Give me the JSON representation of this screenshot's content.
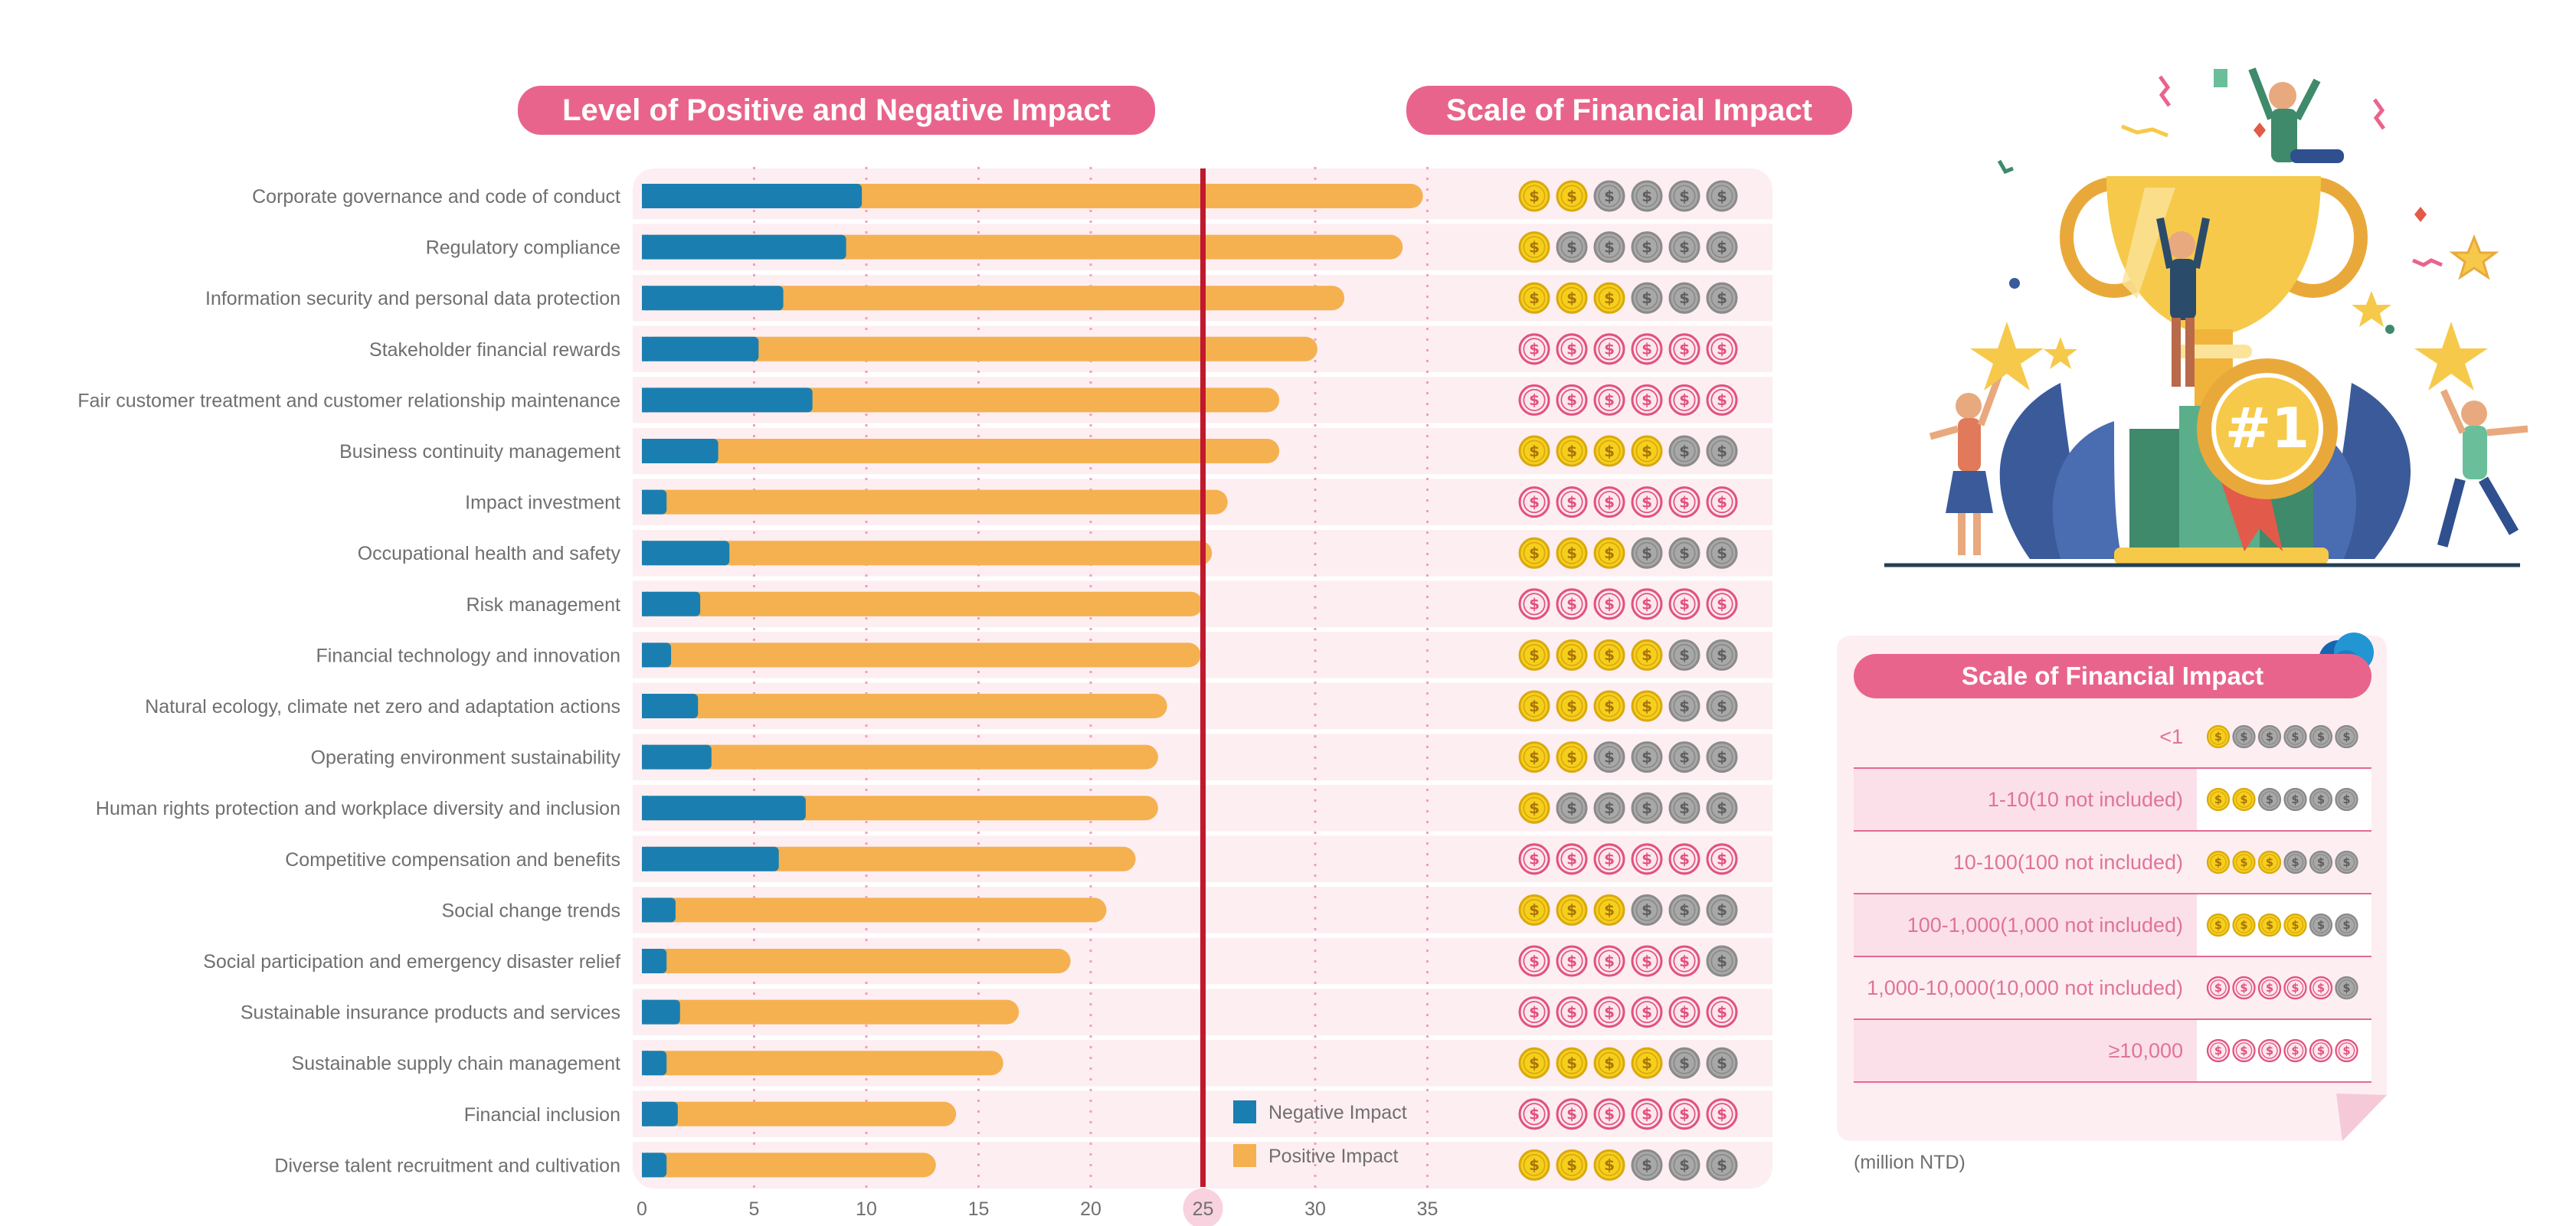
{
  "titles": {
    "impact": "Level of Positive and Negative Impact",
    "financial": "Scale of Financial Impact"
  },
  "chart_data": {
    "type": "bar",
    "orientation": "horizontal",
    "stacked": true,
    "title": "Level of Positive and Negative Impact",
    "xlim": [
      0,
      35
    ],
    "xticks": [
      0,
      5,
      10,
      15,
      20,
      25,
      30,
      35
    ],
    "threshold": 25,
    "grid": "vertical dotted",
    "legend_position": "bottom-right",
    "categories": [
      "Corporate governance and code of conduct",
      "Regulatory compliance",
      "Information security and personal data protection",
      "Stakeholder financial rewards",
      "Fair customer treatment and customer relationship maintenance",
      "Business continuity management",
      "Impact investment",
      "Occupational health and safety",
      "Risk management",
      "Financial technology and innovation",
      "Natural ecology, climate net zero and adaptation actions",
      "Operating environment sustainability",
      "Human rights protection and workplace diversity and inclusion",
      "Competitive compensation and benefits",
      "Social change trends",
      "Social participation and emergency disaster relief",
      "Sustainable insurance products and services",
      "Sustainable supply chain management",
      "Financial inclusion",
      "Diverse talent recruitment and cultivation"
    ],
    "series": [
      {
        "name": "Negative Impact",
        "color": "#1a7fb0",
        "values": [
          9.8,
          9.1,
          6.3,
          5.2,
          7.6,
          3.4,
          1.1,
          3.9,
          2.6,
          1.3,
          2.5,
          3.1,
          7.3,
          6.1,
          1.5,
          1.1,
          1.7,
          1.1,
          1.6,
          1.1
        ]
      },
      {
        "name": "Positive Impact",
        "color": "#f5b150",
        "values": [
          25.0,
          24.8,
          25.0,
          24.9,
          20.8,
          25.0,
          25.0,
          21.5,
          22.4,
          23.6,
          20.9,
          19.9,
          15.7,
          15.9,
          19.2,
          18.0,
          15.1,
          15.0,
          12.4,
          12.0
        ]
      }
    ],
    "financial_scale_coins": [
      2,
      1,
      3,
      6,
      6,
      4,
      6,
      3,
      6,
      4,
      4,
      2,
      1,
      6,
      3,
      5,
      6,
      4,
      6,
      3
    ],
    "financial_scale_type": [
      "positive",
      "positive",
      "positive",
      "negative",
      "negative",
      "positive",
      "negative",
      "positive",
      "negative",
      "positive",
      "positive",
      "positive",
      "positive",
      "negative",
      "positive",
      "negative",
      "negative",
      "positive",
      "negative",
      "positive"
    ]
  },
  "scale_legend": {
    "title": "Scale of Financial Impact",
    "unit": "(million NTD)",
    "rows": [
      {
        "range": "<1",
        "coins": 1,
        "type": "positive"
      },
      {
        "range": "1-10(10 not included)",
        "coins": 2,
        "type": "positive"
      },
      {
        "range": "10-100(100 not included)",
        "coins": 3,
        "type": "positive"
      },
      {
        "range": "100-1,000(1,000 not included)",
        "coins": 4,
        "type": "positive"
      },
      {
        "range": "1,000-10,000(10,000 not included)",
        "coins": 5,
        "type": "negative"
      },
      {
        "range": "≥10,000",
        "coins": 6,
        "type": "negative"
      }
    ]
  },
  "trophy_badge": "#1",
  "coin_symbol": "$",
  "colors": {
    "pink_accent": "#e9648d",
    "panel_pink": "#fdeef2",
    "threshold_red": "#c0182d",
    "coin_gold": "#f6cf1c",
    "coin_gray": "#a8a8a8",
    "coin_negative": "#e1527d"
  },
  "icons": [
    "dollar-coin-icon",
    "trophy-illustration",
    "cloud-icon"
  ]
}
